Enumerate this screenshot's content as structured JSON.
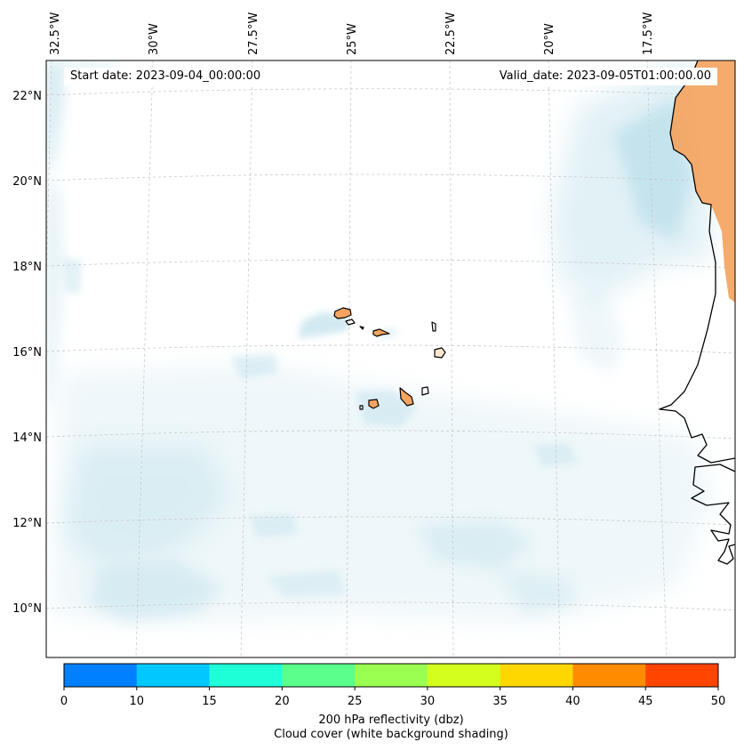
{
  "map": {
    "start_date_text": "Start date: 2023-09-04_00:00:00",
    "valid_date_text": "Valid_date: 2023-09-05T01:00:00.00",
    "lon_ticks": [
      "32.5°W",
      "30°W",
      "27.5°W",
      "25°W",
      "22.5°W",
      "20°W",
      "17.5°W"
    ],
    "lat_ticks": [
      "22°N",
      "20°N",
      "18°N",
      "16°N",
      "14°N",
      "12°N",
      "10°N"
    ],
    "land_color": "#f4a460",
    "coast_color": "#000000",
    "cloud_color": "#add8e6",
    "grid_color": "#c8c8c8"
  },
  "colorbar": {
    "ticks": [
      "0",
      "10",
      "15",
      "20",
      "25",
      "30",
      "35",
      "40",
      "45",
      "50"
    ],
    "colors": [
      "#0080ff",
      "#00c8ff",
      "#1effd8",
      "#5aff8c",
      "#9aff50",
      "#d4ff1e",
      "#ffd700",
      "#ff8c00",
      "#ff4500"
    ],
    "label_line1": "200 hPa reflectivity (dbz)",
    "label_line2": "Cloud cover (white background shading)"
  }
}
